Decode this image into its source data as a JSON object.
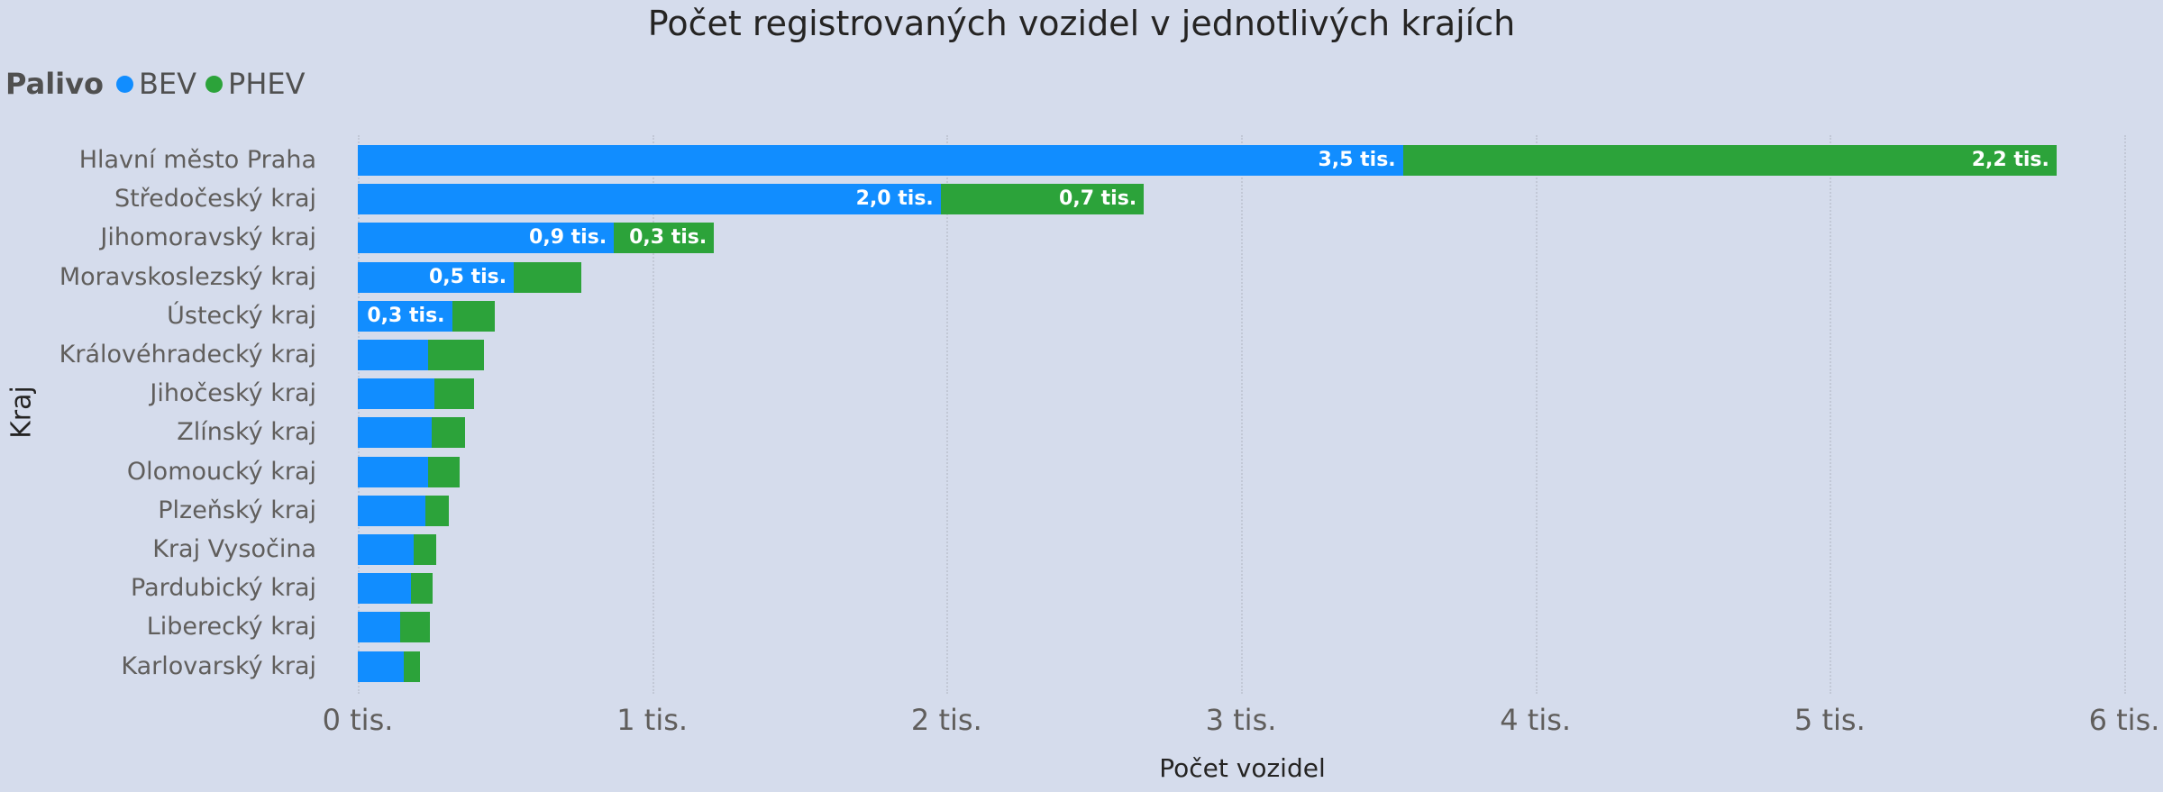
{
  "title": "Počet registrovaných vozidel v jednotlivých krajích",
  "legend": {
    "title": "Palivo",
    "items": [
      {
        "label": "BEV",
        "color": "#118dff"
      },
      {
        "label": "PHEV",
        "color": "#2ca33a"
      }
    ]
  },
  "y_axis_title": "Kraj",
  "x_axis_title": "Počet vozidel",
  "x_ticks": [
    "0 tis.",
    "1 tis.",
    "2 tis.",
    "3 tis.",
    "4 tis.",
    "5 tis.",
    "6 tis."
  ],
  "chart_data": {
    "type": "bar",
    "orientation": "horizontal",
    "stacked": true,
    "title": "Počet registrovaných vozidel v jednotlivých krajích",
    "xlabel": "Počet vozidel",
    "ylabel": "Kraj",
    "xlim": [
      0,
      6000
    ],
    "legend_title": "Palivo",
    "legend_position": "top-left",
    "grid": true,
    "categories": [
      "Hlavní město Praha",
      "Středočeský kraj",
      "Jihomoravský kraj",
      "Moravskoslezský kraj",
      "Ústecký kraj",
      "Královéhradecký kraj",
      "Jihočeský kraj",
      "Zlínský kraj",
      "Olomoucký kraj",
      "Plzeňský kraj",
      "Kraj Vysočina",
      "Pardubický kraj",
      "Liberecký kraj",
      "Karlovarský kraj"
    ],
    "series": [
      {
        "name": "BEV",
        "color": "#118dff",
        "values": [
          3550,
          1980,
          870,
          530,
          320,
          240,
          260,
          250,
          240,
          230,
          190,
          180,
          145,
          155
        ],
        "labels": [
          "3,5 tis.",
          "2,0 tis.",
          "0,9 tis.",
          "0,5 tis.",
          "0,3 tis.",
          "",
          "",
          "",
          "",
          "",
          "",
          "",
          "",
          ""
        ]
      },
      {
        "name": "PHEV",
        "color": "#2ca33a",
        "values": [
          2220,
          690,
          340,
          230,
          145,
          190,
          135,
          115,
          105,
          80,
          75,
          75,
          100,
          55
        ],
        "labels": [
          "2,2 tis.",
          "0,7 tis.",
          "0,3 tis.",
          "",
          "",
          "",
          "",
          "",
          "",
          "",
          "",
          "",
          "",
          ""
        ]
      }
    ]
  }
}
